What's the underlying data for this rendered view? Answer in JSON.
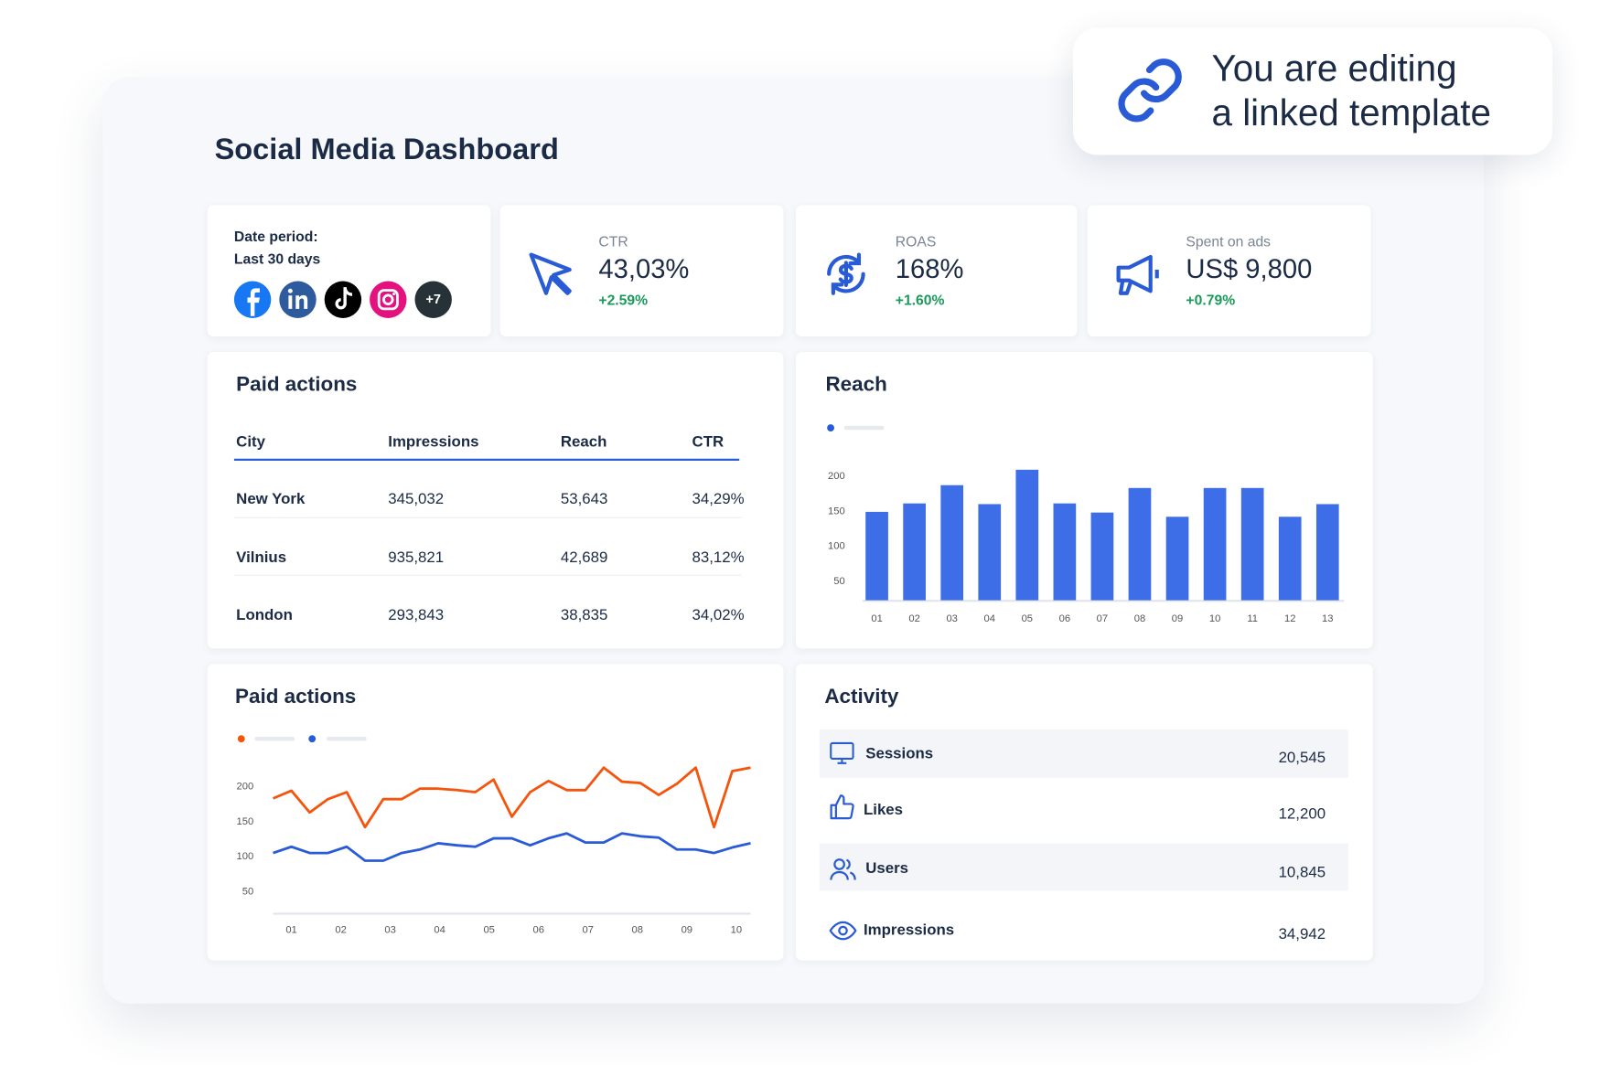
{
  "banner": {
    "lines": [
      "You are editing",
      "a linked template"
    ]
  },
  "title": "Social Media Dashboard",
  "date_card": {
    "label": "Date period:",
    "value": "Last 30 days",
    "more": "+7"
  },
  "kpis": [
    {
      "label": "CTR",
      "value": "43,03%",
      "change": "+2.59%"
    },
    {
      "label": "ROAS",
      "value": "168%",
      "change": "+1.60%"
    },
    {
      "label": "Spent on ads",
      "value": "US$ 9,800",
      "change": "+0.79%"
    }
  ],
  "table": {
    "title": "Paid actions",
    "columns": [
      "City",
      "Impressions",
      "Reach",
      "CTR"
    ],
    "rows": [
      [
        "New York",
        "345,032",
        "53,643",
        "34,29%"
      ],
      [
        "Vilnius",
        "935,821",
        "42,689",
        "83,12%"
      ],
      [
        "London",
        "293,843",
        "38,835",
        "34,02%"
      ]
    ]
  },
  "chart_data": [
    {
      "type": "bar",
      "title": "Reach",
      "categories": [
        "01",
        "02",
        "03",
        "04",
        "05",
        "06",
        "07",
        "08",
        "09",
        "10",
        "11",
        "12",
        "13"
      ],
      "values": [
        148,
        160,
        186,
        159,
        208,
        160,
        147,
        182,
        141,
        182,
        182,
        141,
        159
      ],
      "color": "#3d6ee8",
      "ylim": [
        22,
        215
      ],
      "yticks": [
        50,
        100,
        150,
        200
      ]
    },
    {
      "type": "line",
      "title": "Paid actions",
      "x": [
        0.63,
        1.0,
        1.37,
        1.74,
        2.12,
        2.49,
        2.86,
        3.23,
        3.6,
        3.97,
        4.35,
        4.72,
        5.09,
        5.46,
        5.83,
        6.2,
        6.57,
        6.95,
        7.32,
        7.69,
        8.06,
        8.43,
        8.8,
        9.18,
        9.55,
        9.92,
        10.29
      ],
      "series": [
        {
          "color": "#f4540c",
          "values": [
            182,
            193,
            162,
            181,
            191,
            141,
            181,
            181,
            196,
            196,
            194,
            191,
            209,
            156,
            191,
            207,
            194,
            194,
            226,
            206,
            204,
            187,
            203,
            226,
            141,
            221,
            226
          ]
        },
        {
          "color": "#2a5bd7",
          "values": [
            104,
            113,
            104,
            104,
            113,
            93,
            93,
            104,
            109,
            118,
            115,
            113,
            125,
            125,
            115,
            125,
            132,
            119,
            119,
            132,
            128,
            126,
            109,
            109,
            104,
            112,
            118
          ]
        }
      ],
      "xlim": [
        0.63,
        10.29
      ],
      "xticks": [
        {
          "value": 1,
          "label": "01"
        },
        {
          "value": 2,
          "label": "02"
        },
        {
          "value": 3,
          "label": "03"
        },
        {
          "value": 4,
          "label": "04"
        },
        {
          "value": 5,
          "label": "05"
        },
        {
          "value": 6,
          "label": "06"
        },
        {
          "value": 7,
          "label": "07"
        },
        {
          "value": 8,
          "label": "08"
        },
        {
          "value": 9,
          "label": "09"
        },
        {
          "value": 10,
          "label": "10"
        }
      ],
      "ylim": [
        18,
        235
      ],
      "yticks": [
        50,
        100,
        150,
        200
      ]
    }
  ],
  "activity": {
    "title": "Activity",
    "rows": [
      {
        "label": "Sessions",
        "value": "20,545"
      },
      {
        "label": "Likes",
        "value": "12,200"
      },
      {
        "label": "Users",
        "value": "10,845"
      },
      {
        "label": "Impressions",
        "value": "34,942"
      }
    ]
  }
}
